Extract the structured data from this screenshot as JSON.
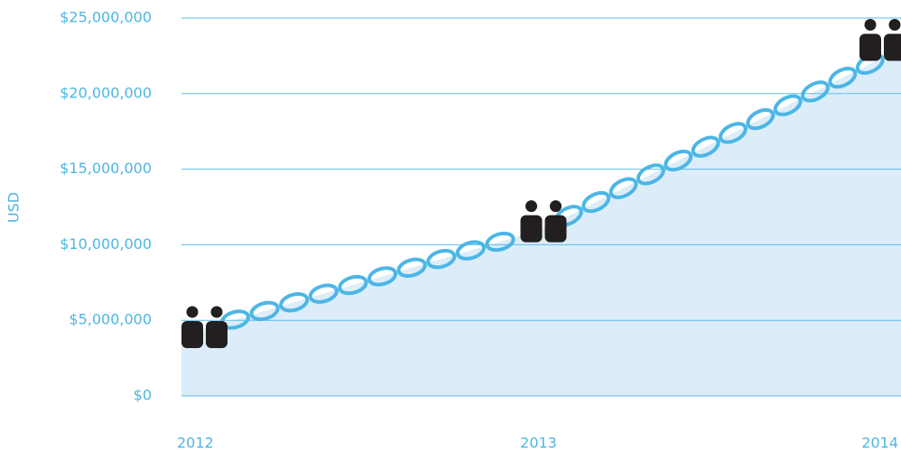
{
  "chart_data": {
    "type": "area",
    "ylabel": "USD",
    "categories": [
      "2012",
      "2013",
      "2014"
    ],
    "values": [
      4000000,
      11000000,
      23000000
    ],
    "color": "#dcedf9",
    "line_color": "#4cb6e6",
    "ylim": [
      0,
      25000000
    ],
    "yticks": [
      {
        "value": 0,
        "label": "$0"
      },
      {
        "value": 5000000,
        "label": "$5,000,000"
      },
      {
        "value": 10000000,
        "label": "$10,000,000"
      },
      {
        "value": 15000000,
        "label": "$15,000,000"
      },
      {
        "value": 20000000,
        "label": "$20,000,000"
      },
      {
        "value": 25000000,
        "label": "$25,000,000"
      }
    ],
    "grid": true
  }
}
